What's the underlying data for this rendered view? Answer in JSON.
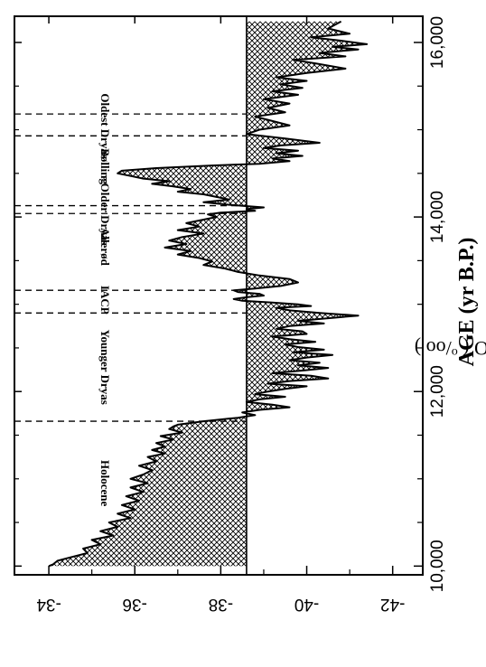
{
  "chart_data": {
    "type": "area",
    "xlabel": "AGE (yr B.P.)",
    "ylabel": "δ18O (°/oo)",
    "xlim": [
      16300,
      9900
    ],
    "ylim": [
      -42.7,
      -33.2
    ],
    "reference_line": -38.6,
    "x_ticks": [
      {
        "value": 16000,
        "label": "16,000"
      },
      {
        "value": 14000,
        "label": "14,000"
      },
      {
        "value": 12000,
        "label": "12,000"
      },
      {
        "value": 10000,
        "label": "10,000"
      }
    ],
    "y_ticks": [
      {
        "value": -34,
        "label": "-34"
      },
      {
        "value": -36,
        "label": "-36"
      },
      {
        "value": -38,
        "label": "-38"
      },
      {
        "value": -40,
        "label": "-40"
      },
      {
        "value": -42,
        "label": "-42"
      }
    ],
    "series": [
      {
        "x": [
          16240,
          16160,
          16100,
          16060,
          16020,
          15980,
          15950,
          15920,
          15880,
          15840,
          15800,
          15760,
          15700,
          15650,
          15600,
          15560,
          15520,
          15480,
          15440,
          15400,
          15350,
          15300,
          15250,
          15200,
          15150,
          15100,
          15050,
          15000,
          14950,
          14900,
          14850,
          14820,
          14790,
          14760,
          14730,
          14700,
          14670,
          14640,
          14610,
          14590,
          14560,
          14530,
          14500,
          14470,
          14440,
          14410,
          14380,
          14350,
          14320,
          14290,
          14260,
          14230,
          14200,
          14170,
          14140,
          14110,
          14090,
          14070,
          14050,
          14030,
          14000,
          13970,
          13930,
          13890,
          13850,
          13810,
          13770,
          13730,
          13690,
          13650,
          13610,
          13570,
          13530,
          13490,
          13450,
          13410,
          13370,
          13330,
          13290,
          13250,
          13210,
          13180,
          13160,
          13140,
          13120,
          13100,
          13080,
          13060,
          13040,
          13020,
          13000,
          12980,
          12960,
          12930,
          12900,
          12870,
          12840,
          12810,
          12780,
          12750,
          12720,
          12690,
          12660,
          12630,
          12600,
          12570,
          12540,
          12510,
          12480,
          12450,
          12420,
          12390,
          12360,
          12330,
          12300,
          12270,
          12240,
          12210,
          12180,
          12150,
          12120,
          12090,
          12060,
          12030,
          12000,
          11970,
          11940,
          11910,
          11880,
          11850,
          11820,
          11790,
          11760,
          11730,
          11700,
          11680,
          11660,
          11640,
          11620,
          11600,
          11570,
          11530,
          11490,
          11450,
          11410,
          11370,
          11330,
          11290,
          11250,
          11200,
          11150,
          11100,
          11050,
          11000,
          10950,
          10900,
          10850,
          10800,
          10750,
          10700,
          10650,
          10600,
          10550,
          10500,
          10450,
          10400,
          10350,
          10300,
          10250,
          10200,
          10150,
          10100,
          10060,
          10020,
          10000
        ],
        "y": [
          -40.8,
          -40.5,
          -41.0,
          -40.1,
          -40.8,
          -41.4,
          -40.6,
          -41.2,
          -40.3,
          -40.9,
          -39.7,
          -40.2,
          -40.9,
          -40.0,
          -39.3,
          -40.0,
          -39.4,
          -39.9,
          -39.2,
          -39.8,
          -39.0,
          -39.6,
          -39.1,
          -39.5,
          -38.8,
          -39.2,
          -39.6,
          -38.9,
          -38.6,
          -39.5,
          -40.3,
          -39.4,
          -39.0,
          -39.8,
          -39.3,
          -39.9,
          -39.2,
          -39.6,
          -38.9,
          -37.8,
          -36.5,
          -35.7,
          -35.6,
          -35.9,
          -36.2,
          -36.8,
          -36.4,
          -36.9,
          -37.3,
          -37.0,
          -37.6,
          -37.9,
          -38.2,
          -37.6,
          -38.2,
          -39.0,
          -38.6,
          -38.8,
          -38.0,
          -37.7,
          -37.9,
          -37.6,
          -37.2,
          -37.5,
          -37.0,
          -37.6,
          -37.1,
          -36.8,
          -37.2,
          -36.7,
          -37.3,
          -37.0,
          -37.5,
          -37.8,
          -37.6,
          -38.1,
          -38.4,
          -38.9,
          -39.6,
          -39.8,
          -39.4,
          -38.8,
          -38.3,
          -38.4,
          -38.9,
          -39.0,
          -38.6,
          -38.3,
          -38.5,
          -39.2,
          -39.8,
          -40.1,
          -39.3,
          -39.6,
          -40.3,
          -41.2,
          -40.5,
          -39.8,
          -40.4,
          -39.6,
          -39.3,
          -39.9,
          -40.0,
          -39.2,
          -39.6,
          -40.2,
          -39.5,
          -39.8,
          -40.4,
          -39.7,
          -40.6,
          -40.0,
          -39.6,
          -40.3,
          -39.8,
          -40.5,
          -39.9,
          -39.2,
          -40.1,
          -40.5,
          -39.6,
          -39.1,
          -40.0,
          -39.5,
          -39.1,
          -38.8,
          -39.5,
          -38.9,
          -38.6,
          -39.2,
          -39.6,
          -38.9,
          -38.5,
          -38.8,
          -38.4,
          -38.0,
          -37.6,
          -37.3,
          -37.0,
          -36.9,
          -36.8,
          -37.1,
          -36.6,
          -36.9,
          -36.5,
          -36.7,
          -36.4,
          -36.7,
          -36.3,
          -36.5,
          -36.1,
          -36.4,
          -36.2,
          -35.9,
          -36.3,
          -35.9,
          -36.2,
          -35.8,
          -36.1,
          -35.7,
          -36.0,
          -35.6,
          -35.9,
          -35.4,
          -35.6,
          -35.2,
          -35.5,
          -35.0,
          -35.2,
          -34.8,
          -34.9,
          -34.5,
          -34.2,
          -34.1,
          -34.0
        ]
      }
    ],
    "boundaries": [
      15180,
      14930,
      14130,
      14040,
      13160,
      12900,
      11660
    ],
    "annotations": [
      {
        "text": "Oldest Dryas",
        "x": 15040
      },
      {
        "text": "Bølling",
        "x": 14580
      },
      {
        "text": "=Older Dryas",
        "x": 14070
      },
      {
        "text": "Allerød",
        "x": 13660
      },
      {
        "text": "IACP",
        "x": 13050
      },
      {
        "text": "Younger Dryas",
        "x": 12280
      },
      {
        "text": "Holocene",
        "x": 10950
      }
    ]
  }
}
